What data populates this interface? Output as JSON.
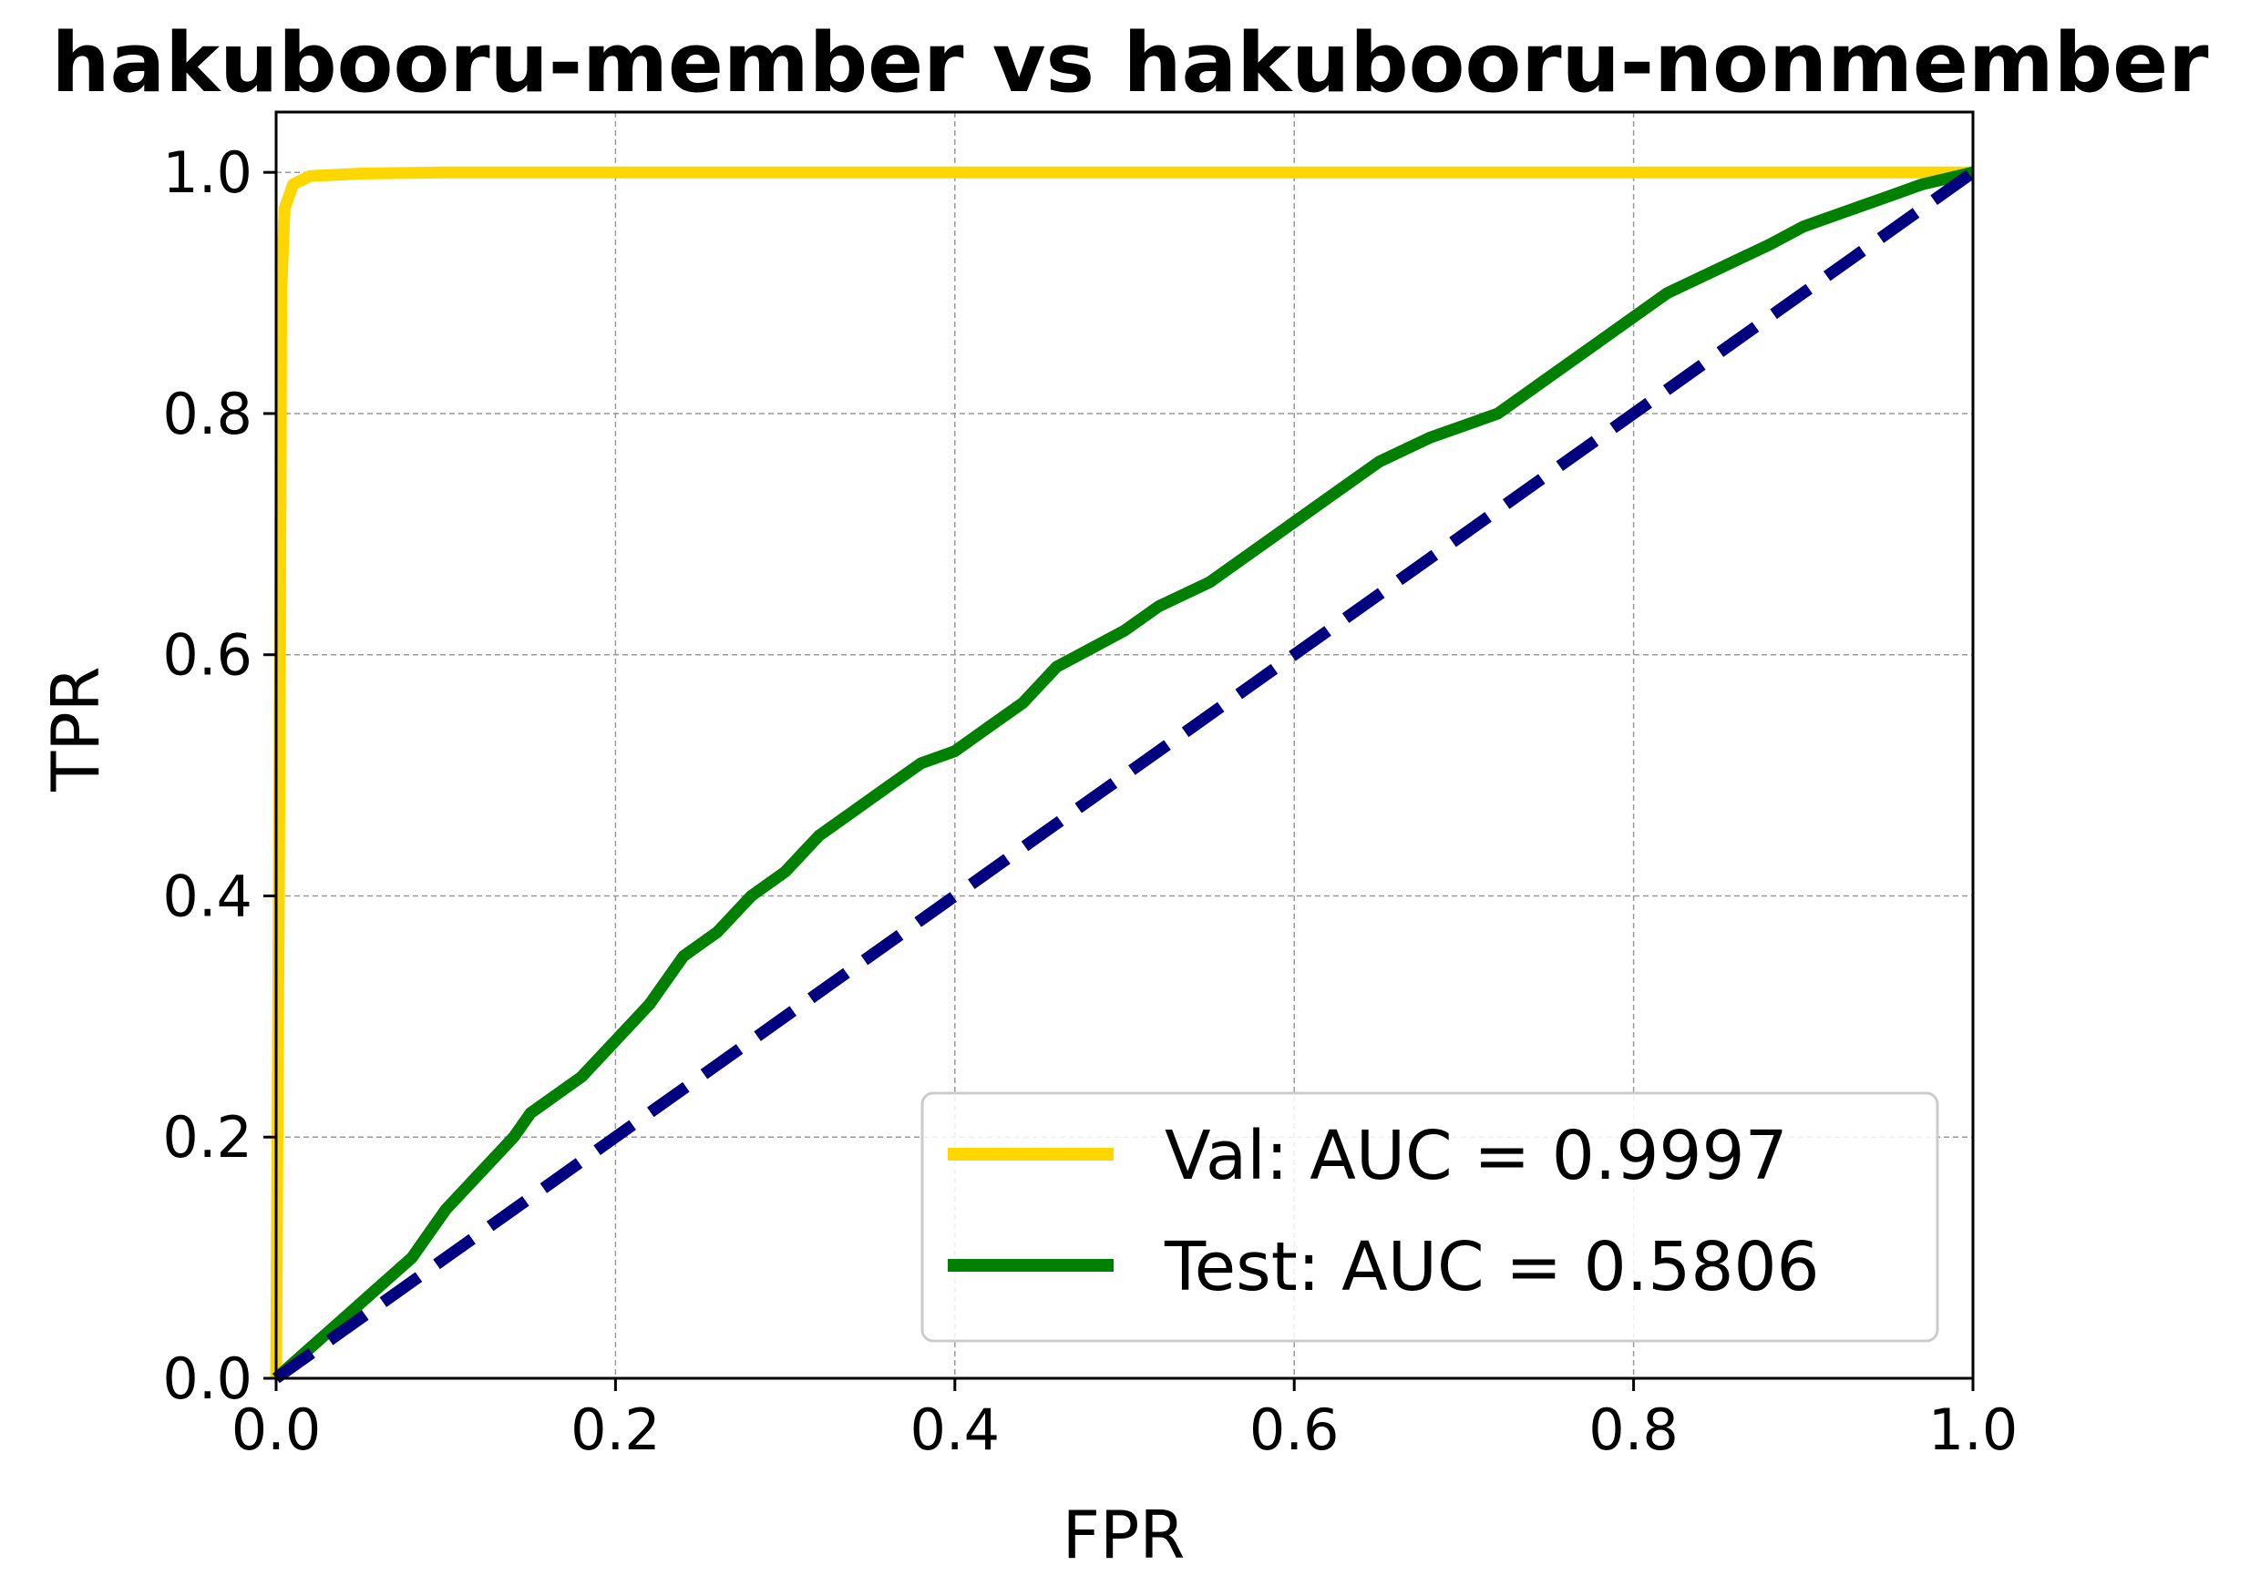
{
  "chart_data": {
    "type": "line",
    "title": "hakubooru-member vs hakubooru-nonmember",
    "xlabel": "FPR",
    "ylabel": "TPR",
    "xlim": [
      0.0,
      1.0
    ],
    "ylim": [
      0.0,
      1.05
    ],
    "xticks": [
      "0.0",
      "0.2",
      "0.4",
      "0.6",
      "0.8",
      "1.0"
    ],
    "yticks": [
      "0.0",
      "0.2",
      "0.4",
      "0.6",
      "0.8",
      "1.0"
    ],
    "grid": true,
    "legend_position": "lower-right",
    "series": [
      {
        "name": "Val: AUC = 0.9997",
        "color": "#FFD700",
        "x": [
          0.0,
          0.002,
          0.003,
          0.005,
          0.01,
          0.02,
          0.05,
          0.1,
          0.3,
          0.6,
          1.0
        ],
        "y": [
          0.0,
          0.5,
          0.9,
          0.97,
          0.99,
          0.997,
          0.999,
          1.0,
          1.0,
          1.0,
          1.0
        ]
      },
      {
        "name": "Test: AUC = 0.5806",
        "color": "#008000",
        "x": [
          0.0,
          0.02,
          0.04,
          0.06,
          0.08,
          0.09,
          0.1,
          0.12,
          0.14,
          0.15,
          0.18,
          0.2,
          0.22,
          0.24,
          0.26,
          0.28,
          0.3,
          0.32,
          0.34,
          0.36,
          0.38,
          0.4,
          0.42,
          0.44,
          0.46,
          0.48,
          0.5,
          0.52,
          0.55,
          0.58,
          0.6,
          0.62,
          0.65,
          0.68,
          0.7,
          0.72,
          0.75,
          0.78,
          0.8,
          0.82,
          0.85,
          0.88,
          0.9,
          0.92,
          0.95,
          0.97,
          1.0
        ],
        "y": [
          0.0,
          0.025,
          0.05,
          0.075,
          0.1,
          0.12,
          0.14,
          0.17,
          0.2,
          0.22,
          0.25,
          0.28,
          0.31,
          0.35,
          0.37,
          0.4,
          0.42,
          0.45,
          0.47,
          0.49,
          0.51,
          0.52,
          0.54,
          0.56,
          0.59,
          0.605,
          0.62,
          0.64,
          0.66,
          0.69,
          0.71,
          0.73,
          0.76,
          0.78,
          0.79,
          0.8,
          0.83,
          0.86,
          0.88,
          0.9,
          0.92,
          0.94,
          0.955,
          0.965,
          0.98,
          0.99,
          1.0
        ]
      },
      {
        "name": "",
        "color": "#000080",
        "style": "dashed",
        "x": [
          0.0,
          1.0
        ],
        "y": [
          0.0,
          1.0
        ]
      }
    ]
  }
}
